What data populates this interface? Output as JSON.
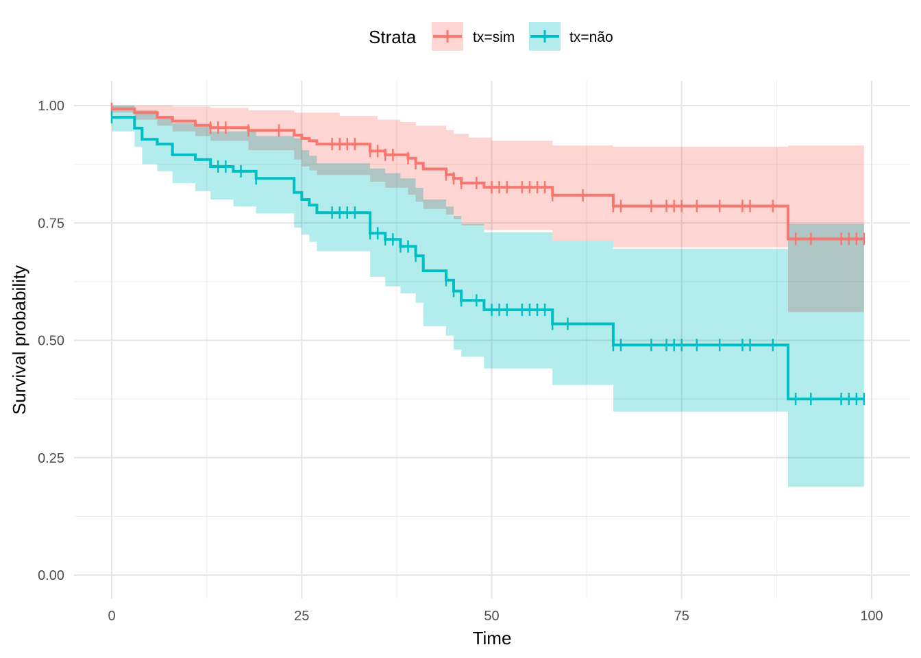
{
  "chart_data": {
    "type": "line",
    "subtype": "kaplan-meier-step",
    "xlabel": "Time",
    "ylabel": "Survival probability",
    "xlim": [
      0,
      100
    ],
    "ylim": [
      0,
      1
    ],
    "x_ticks": [
      0,
      25,
      50,
      75,
      100
    ],
    "x_tick_labels": [
      "0",
      "25",
      "50",
      "75",
      "100"
    ],
    "y_ticks": [
      0,
      0.25,
      0.5,
      0.75,
      1
    ],
    "y_tick_labels": [
      "0.00",
      "0.25",
      "0.50",
      "0.75",
      "1.00"
    ],
    "grid": true,
    "legend": {
      "title": "Strata",
      "position": "top"
    },
    "series": [
      {
        "name": "tx=sim",
        "color": "#F8766D",
        "fill": "#F8766D",
        "fill_opacity": 0.3,
        "steps": [
          [
            0,
            0.993
          ],
          [
            3,
            0.985
          ],
          [
            6,
            0.975
          ],
          [
            8,
            0.967
          ],
          [
            11,
            0.958
          ],
          [
            13,
            0.953
          ],
          [
            18,
            0.947
          ],
          [
            24,
            0.937
          ],
          [
            25,
            0.93
          ],
          [
            26,
            0.925
          ],
          [
            27,
            0.918
          ],
          [
            34,
            0.903
          ],
          [
            36,
            0.895
          ],
          [
            39,
            0.888
          ],
          [
            40,
            0.877
          ],
          [
            41,
            0.865
          ],
          [
            44,
            0.853
          ],
          [
            45,
            0.845
          ],
          [
            46,
            0.835
          ],
          [
            49,
            0.826
          ],
          [
            58,
            0.809
          ],
          [
            66,
            0.786
          ],
          [
            89,
            0.716
          ],
          [
            99,
            0.716
          ]
        ],
        "upper": [
          [
            0,
            1.0
          ],
          [
            8,
            0.998
          ],
          [
            13,
            0.995
          ],
          [
            18,
            0.99
          ],
          [
            24,
            0.985
          ],
          [
            30,
            0.978
          ],
          [
            35,
            0.97
          ],
          [
            38,
            0.965
          ],
          [
            40,
            0.957
          ],
          [
            44,
            0.948
          ],
          [
            45,
            0.94
          ],
          [
            47,
            0.932
          ],
          [
            50,
            0.925
          ],
          [
            58,
            0.915
          ],
          [
            66,
            0.912
          ],
          [
            89,
            0.915
          ],
          [
            99,
            0.915
          ]
        ],
        "lower": [
          [
            0,
            0.985
          ],
          [
            3,
            0.97
          ],
          [
            6,
            0.957
          ],
          [
            8,
            0.945
          ],
          [
            11,
            0.935
          ],
          [
            13,
            0.925
          ],
          [
            18,
            0.905
          ],
          [
            24,
            0.885
          ],
          [
            25,
            0.87
          ],
          [
            26,
            0.862
          ],
          [
            27,
            0.852
          ],
          [
            34,
            0.838
          ],
          [
            36,
            0.825
          ],
          [
            39,
            0.81
          ],
          [
            40,
            0.795
          ],
          [
            41,
            0.78
          ],
          [
            44,
            0.768
          ],
          [
            45,
            0.758
          ],
          [
            46,
            0.745
          ],
          [
            49,
            0.735
          ],
          [
            58,
            0.712
          ],
          [
            66,
            0.698
          ],
          [
            89,
            0.56
          ],
          [
            99,
            0.56
          ]
        ],
        "censor": [
          0,
          13,
          14,
          15,
          18,
          22,
          29,
          30,
          31,
          32,
          34,
          35,
          36,
          37,
          39,
          40,
          44,
          45,
          46,
          48,
          50,
          51,
          52,
          54,
          55,
          56,
          57,
          58,
          62,
          66,
          67,
          71,
          73,
          74,
          75,
          77,
          80,
          83,
          84,
          87,
          90,
          92,
          96,
          97,
          98,
          99
        ]
      },
      {
        "name": "tx=não",
        "color": "#00BFC4",
        "fill": "#00BFC4",
        "fill_opacity": 0.3,
        "steps": [
          [
            0,
            0.975
          ],
          [
            3,
            0.952
          ],
          [
            4,
            0.928
          ],
          [
            6,
            0.918
          ],
          [
            8,
            0.895
          ],
          [
            11,
            0.885
          ],
          [
            13,
            0.87
          ],
          [
            16,
            0.86
          ],
          [
            19,
            0.845
          ],
          [
            24,
            0.815
          ],
          [
            25,
            0.8
          ],
          [
            26,
            0.788
          ],
          [
            27,
            0.772
          ],
          [
            34,
            0.728
          ],
          [
            36,
            0.715
          ],
          [
            38,
            0.7
          ],
          [
            40,
            0.68
          ],
          [
            41,
            0.648
          ],
          [
            44,
            0.628
          ],
          [
            45,
            0.605
          ],
          [
            46,
            0.585
          ],
          [
            49,
            0.565
          ],
          [
            58,
            0.535
          ],
          [
            66,
            0.49
          ],
          [
            89,
            0.375
          ],
          [
            99,
            0.375
          ]
        ],
        "upper": [
          [
            0,
            1.0
          ],
          [
            3,
            0.99
          ],
          [
            6,
            0.975
          ],
          [
            8,
            0.962
          ],
          [
            11,
            0.955
          ],
          [
            13,
            0.945
          ],
          [
            19,
            0.935
          ],
          [
            24,
            0.93
          ],
          [
            25,
            0.905
          ],
          [
            26,
            0.893
          ],
          [
            27,
            0.877
          ],
          [
            34,
            0.866
          ],
          [
            36,
            0.856
          ],
          [
            38,
            0.845
          ],
          [
            40,
            0.825
          ],
          [
            41,
            0.8
          ],
          [
            44,
            0.785
          ],
          [
            45,
            0.765
          ],
          [
            46,
            0.748
          ],
          [
            49,
            0.73
          ],
          [
            58,
            0.712
          ],
          [
            66,
            0.695
          ],
          [
            89,
            0.748
          ],
          [
            99,
            0.748
          ]
        ],
        "lower": [
          [
            0,
            0.945
          ],
          [
            3,
            0.912
          ],
          [
            4,
            0.875
          ],
          [
            6,
            0.86
          ],
          [
            8,
            0.835
          ],
          [
            11,
            0.818
          ],
          [
            13,
            0.8
          ],
          [
            16,
            0.785
          ],
          [
            19,
            0.77
          ],
          [
            24,
            0.74
          ],
          [
            25,
            0.725
          ],
          [
            26,
            0.71
          ],
          [
            27,
            0.69
          ],
          [
            34,
            0.635
          ],
          [
            36,
            0.615
          ],
          [
            38,
            0.6
          ],
          [
            40,
            0.58
          ],
          [
            41,
            0.53
          ],
          [
            44,
            0.51
          ],
          [
            45,
            0.48
          ],
          [
            46,
            0.465
          ],
          [
            49,
            0.44
          ],
          [
            58,
            0.405
          ],
          [
            66,
            0.348
          ],
          [
            89,
            0.188
          ],
          [
            99,
            0.188
          ]
        ],
        "censor": [
          0,
          14,
          15,
          17,
          19,
          29,
          30,
          31,
          32,
          34,
          35,
          36,
          37,
          38,
          39,
          40,
          44,
          45,
          46,
          48,
          50,
          51,
          52,
          54,
          55,
          56,
          57,
          58,
          60,
          66,
          67,
          71,
          73,
          74,
          75,
          77,
          80,
          83,
          84,
          87,
          90,
          92,
          96,
          97,
          98,
          99
        ]
      }
    ]
  }
}
